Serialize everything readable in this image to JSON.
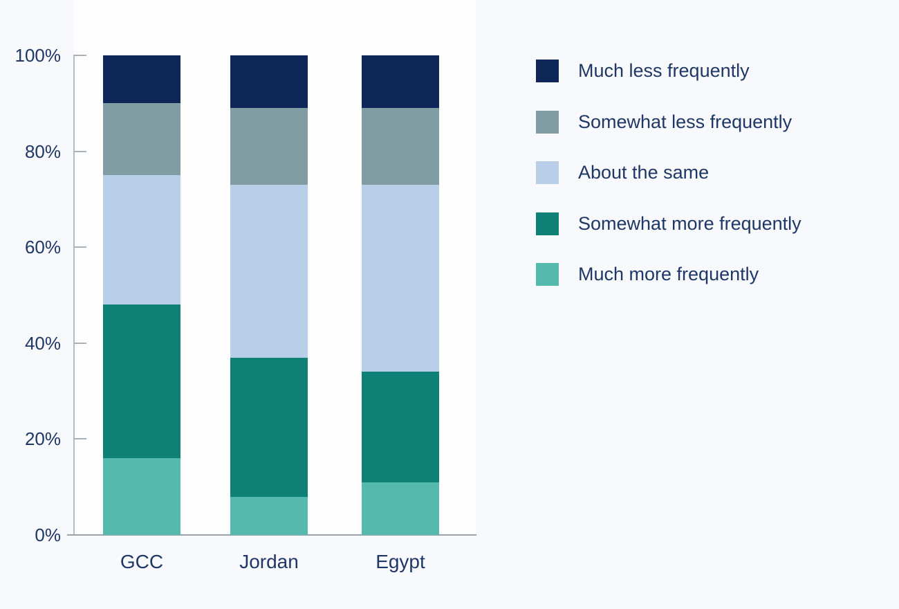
{
  "chart_data": {
    "type": "bar",
    "stacked": true,
    "percent_stacked": true,
    "title": "",
    "xlabel": "",
    "ylabel": "",
    "categories": [
      "GCC",
      "Jordan",
      "Egypt"
    ],
    "series": [
      {
        "name": "Much more frequently",
        "color": "#55b9ae",
        "values": [
          16,
          8,
          11
        ]
      },
      {
        "name": "Somewhat more frequently",
        "color": "#0f8076",
        "values": [
          32,
          29,
          23
        ]
      },
      {
        "name": "About the same",
        "color": "#b9cfe9",
        "values": [
          27,
          36,
          39
        ]
      },
      {
        "name": "Somewhat less frequently",
        "color": "#7f9da3",
        "values": [
          15,
          16,
          16
        ]
      },
      {
        "name": "Much less frequently",
        "color": "#0e2758",
        "values": [
          10,
          11,
          11
        ]
      }
    ],
    "ylim": [
      0,
      100
    ],
    "y_ticks": [
      {
        "value": 0,
        "label": "0%"
      },
      {
        "value": 20,
        "label": "20%"
      },
      {
        "value": 40,
        "label": "40%"
      },
      {
        "value": 60,
        "label": "60%"
      },
      {
        "value": 80,
        "label": "80%"
      },
      {
        "value": 100,
        "label": "100%"
      }
    ],
    "grid": false,
    "legend": {
      "position": "right",
      "items_top_to_bottom": [
        "Much less frequently",
        "Somewhat less frequently",
        "About the same",
        "Somewhat more frequently",
        "Much more frequently"
      ]
    }
  },
  "colors": {
    "page_background": "#f8f9fc",
    "plot_background": "#fdfdfe",
    "axis_line": "#b4bcc6",
    "tick_line": "#a9b1bb",
    "baseline": "#9aa3ad",
    "label_text": "#1e3766"
  }
}
